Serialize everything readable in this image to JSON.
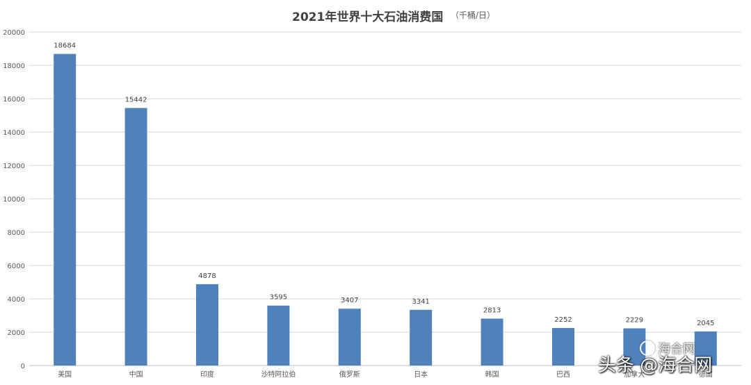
{
  "chart_data": {
    "type": "bar",
    "title": "2021年世界十大石油消费国",
    "unit": "（千桶/日）",
    "categories": [
      "美国",
      "中国",
      "印度",
      "沙特阿拉伯",
      "俄罗斯",
      "日本",
      "韩国",
      "巴西",
      "加拿大",
      "德国"
    ],
    "values": [
      18684,
      15442,
      4878,
      3595,
      3407,
      3341,
      2813,
      2252,
      2229,
      2045
    ],
    "ylim": [
      0,
      20000
    ],
    "yticks": [
      0,
      2000,
      4000,
      6000,
      8000,
      10000,
      12000,
      14000,
      16000,
      18000,
      20000
    ],
    "grid": true,
    "bar_color": "#4f81bd",
    "grid_color": "#d9d9d9"
  },
  "watermark": {
    "text": "头条 @海合网",
    "logo_text": "海合网"
  }
}
